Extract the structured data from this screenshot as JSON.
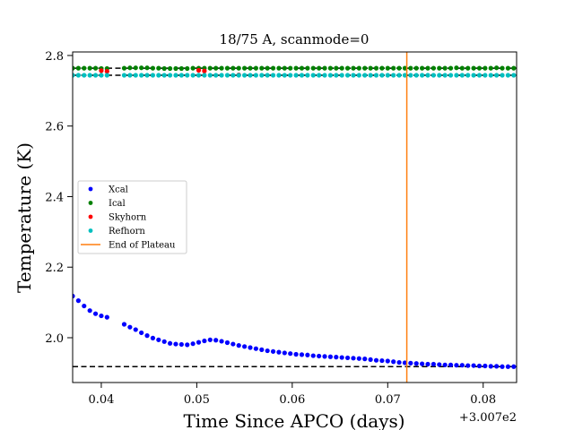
{
  "chart_data": {
    "type": "scatter",
    "title": "18/75 A, scanmode=0",
    "xlabel": "Time Since APCO (days)",
    "ylabel": "Temperature (K)",
    "x_offset_label": "+3.007e2",
    "xlim": [
      300.737,
      300.7835
    ],
    "ylim": [
      1.873,
      2.81
    ],
    "x_ticks": [
      {
        "value": 300.74,
        "label": "0.04"
      },
      {
        "value": 300.75,
        "label": "0.05"
      },
      {
        "value": 300.76,
        "label": "0.06"
      },
      {
        "value": 300.77,
        "label": "0.07"
      },
      {
        "value": 300.78,
        "label": "0.08"
      }
    ],
    "y_ticks": [
      {
        "value": 2.0,
        "label": "2.0"
      },
      {
        "value": 2.2,
        "label": "2.2"
      },
      {
        "value": 2.4,
        "label": "2.4"
      },
      {
        "value": 2.6,
        "label": "2.6"
      },
      {
        "value": 2.8,
        "label": "2.8"
      }
    ],
    "legend_position": "center-left",
    "series": [
      {
        "name": "Xcal",
        "color": "#0000ff",
        "points": [
          [
            300.737,
            2.118
          ],
          [
            300.7376,
            2.105
          ],
          [
            300.7382,
            2.09
          ],
          [
            300.7388,
            2.077
          ],
          [
            300.7394,
            2.068
          ],
          [
            300.74,
            2.062
          ],
          [
            300.7406,
            2.058
          ],
          [
            300.7424,
            2.038
          ],
          [
            300.743,
            2.03
          ],
          [
            300.7436,
            2.023
          ],
          [
            300.7442,
            2.014
          ],
          [
            300.7448,
            2.006
          ],
          [
            300.7454,
            1.999
          ],
          [
            300.746,
            1.994
          ],
          [
            300.7466,
            1.989
          ],
          [
            300.7472,
            1.984
          ],
          [
            300.7478,
            1.982
          ],
          [
            300.7484,
            1.981
          ],
          [
            300.749,
            1.98
          ],
          [
            300.7496,
            1.983
          ],
          [
            300.7502,
            1.987
          ],
          [
            300.7508,
            1.991
          ],
          [
            300.7514,
            1.994
          ],
          [
            300.752,
            1.993
          ],
          [
            300.7526,
            1.99
          ],
          [
            300.7532,
            1.986
          ],
          [
            300.7538,
            1.982
          ],
          [
            300.7544,
            1.978
          ],
          [
            300.755,
            1.975
          ],
          [
            300.7556,
            1.972
          ],
          [
            300.7562,
            1.969
          ],
          [
            300.7568,
            1.966
          ],
          [
            300.7574,
            1.963
          ],
          [
            300.758,
            1.961
          ],
          [
            300.7586,
            1.959
          ],
          [
            300.7592,
            1.957
          ],
          [
            300.7598,
            1.955
          ],
          [
            300.7604,
            1.953
          ],
          [
            300.761,
            1.952
          ],
          [
            300.7616,
            1.951
          ],
          [
            300.7622,
            1.949
          ],
          [
            300.7628,
            1.948
          ],
          [
            300.7634,
            1.947
          ],
          [
            300.764,
            1.946
          ],
          [
            300.7646,
            1.945
          ],
          [
            300.7652,
            1.944
          ],
          [
            300.7658,
            1.943
          ],
          [
            300.7664,
            1.942
          ],
          [
            300.767,
            1.941
          ],
          [
            300.7676,
            1.94
          ],
          [
            300.7682,
            1.938
          ],
          [
            300.7688,
            1.936
          ],
          [
            300.7694,
            1.935
          ],
          [
            300.77,
            1.934
          ],
          [
            300.7706,
            1.932
          ],
          [
            300.7712,
            1.93
          ],
          [
            300.7718,
            1.929
          ],
          [
            300.7724,
            1.928
          ],
          [
            300.773,
            1.927
          ],
          [
            300.7736,
            1.926
          ],
          [
            300.7742,
            1.925
          ],
          [
            300.7748,
            1.925
          ],
          [
            300.7754,
            1.924
          ],
          [
            300.776,
            1.923
          ],
          [
            300.7766,
            1.923
          ],
          [
            300.7772,
            1.922
          ],
          [
            300.7778,
            1.922
          ],
          [
            300.7784,
            1.921
          ],
          [
            300.779,
            1.921
          ],
          [
            300.7796,
            1.92
          ],
          [
            300.7802,
            1.92
          ],
          [
            300.7808,
            1.919
          ],
          [
            300.7814,
            1.919
          ],
          [
            300.782,
            1.918
          ],
          [
            300.7826,
            1.918
          ],
          [
            300.7832,
            1.918
          ]
        ]
      },
      {
        "name": "Ical",
        "color": "#008000",
        "points": [
          [
            300.737,
            2.764
          ],
          [
            300.7376,
            2.764
          ],
          [
            300.7382,
            2.764
          ],
          [
            300.7388,
            2.764
          ],
          [
            300.7394,
            2.764
          ],
          [
            300.74,
            2.763
          ],
          [
            300.7406,
            2.763
          ],
          [
            300.7424,
            2.764
          ],
          [
            300.743,
            2.765
          ],
          [
            300.7436,
            2.765
          ],
          [
            300.7442,
            2.765
          ],
          [
            300.7448,
            2.765
          ],
          [
            300.7454,
            2.764
          ],
          [
            300.746,
            2.764
          ],
          [
            300.7466,
            2.763
          ],
          [
            300.7472,
            2.763
          ],
          [
            300.7478,
            2.763
          ],
          [
            300.7484,
            2.763
          ],
          [
            300.749,
            2.763
          ],
          [
            300.7496,
            2.764
          ],
          [
            300.7502,
            2.764
          ],
          [
            300.7508,
            2.764
          ],
          [
            300.7514,
            2.764
          ],
          [
            300.752,
            2.764
          ],
          [
            300.7526,
            2.764
          ],
          [
            300.7532,
            2.764
          ],
          [
            300.7538,
            2.764
          ],
          [
            300.7544,
            2.764
          ],
          [
            300.755,
            2.764
          ],
          [
            300.7556,
            2.764
          ],
          [
            300.7562,
            2.764
          ],
          [
            300.7568,
            2.764
          ],
          [
            300.7574,
            2.764
          ],
          [
            300.758,
            2.764
          ],
          [
            300.7586,
            2.764
          ],
          [
            300.7592,
            2.764
          ],
          [
            300.7598,
            2.764
          ],
          [
            300.7604,
            2.764
          ],
          [
            300.761,
            2.764
          ],
          [
            300.7616,
            2.764
          ],
          [
            300.7622,
            2.764
          ],
          [
            300.7628,
            2.764
          ],
          [
            300.7634,
            2.764
          ],
          [
            300.764,
            2.764
          ],
          [
            300.7646,
            2.764
          ],
          [
            300.7652,
            2.764
          ],
          [
            300.7658,
            2.764
          ],
          [
            300.7664,
            2.764
          ],
          [
            300.767,
            2.764
          ],
          [
            300.7676,
            2.764
          ],
          [
            300.7682,
            2.764
          ],
          [
            300.7688,
            2.764
          ],
          [
            300.7694,
            2.764
          ],
          [
            300.77,
            2.764
          ],
          [
            300.7706,
            2.764
          ],
          [
            300.7712,
            2.764
          ],
          [
            300.7718,
            2.764
          ],
          [
            300.7724,
            2.764
          ],
          [
            300.773,
            2.764
          ],
          [
            300.7736,
            2.764
          ],
          [
            300.7742,
            2.764
          ],
          [
            300.7748,
            2.764
          ],
          [
            300.7754,
            2.764
          ],
          [
            300.776,
            2.764
          ],
          [
            300.7766,
            2.764
          ],
          [
            300.7772,
            2.765
          ],
          [
            300.7778,
            2.764
          ],
          [
            300.7784,
            2.764
          ],
          [
            300.779,
            2.764
          ],
          [
            300.7796,
            2.764
          ],
          [
            300.7802,
            2.764
          ],
          [
            300.7808,
            2.764
          ],
          [
            300.7814,
            2.765
          ],
          [
            300.782,
            2.764
          ],
          [
            300.7826,
            2.764
          ],
          [
            300.7832,
            2.764
          ]
        ]
      },
      {
        "name": "Skyhorn",
        "color": "#ff0000",
        "points": [
          [
            300.74,
            2.757
          ],
          [
            300.7406,
            2.755
          ],
          [
            300.7502,
            2.758
          ],
          [
            300.7508,
            2.756
          ],
          [
            300.7544,
            2.745
          ]
        ]
      },
      {
        "name": "Refhorn",
        "color": "#00bfbf",
        "points": [
          [
            300.737,
            2.744
          ],
          [
            300.7376,
            2.744
          ],
          [
            300.7382,
            2.744
          ],
          [
            300.7388,
            2.744
          ],
          [
            300.7394,
            2.744
          ],
          [
            300.74,
            2.744
          ],
          [
            300.7406,
            2.744
          ],
          [
            300.7424,
            2.744
          ],
          [
            300.743,
            2.744
          ],
          [
            300.7436,
            2.744
          ],
          [
            300.7442,
            2.744
          ],
          [
            300.7448,
            2.744
          ],
          [
            300.7454,
            2.744
          ],
          [
            300.746,
            2.744
          ],
          [
            300.7466,
            2.744
          ],
          [
            300.7472,
            2.744
          ],
          [
            300.7478,
            2.744
          ],
          [
            300.7484,
            2.744
          ],
          [
            300.749,
            2.744
          ],
          [
            300.7496,
            2.744
          ],
          [
            300.7502,
            2.744
          ],
          [
            300.7508,
            2.744
          ],
          [
            300.7514,
            2.744
          ],
          [
            300.752,
            2.744
          ],
          [
            300.7526,
            2.744
          ],
          [
            300.7532,
            2.744
          ],
          [
            300.7538,
            2.744
          ],
          [
            300.7544,
            2.744
          ],
          [
            300.755,
            2.744
          ],
          [
            300.7556,
            2.744
          ],
          [
            300.7562,
            2.744
          ],
          [
            300.7568,
            2.744
          ],
          [
            300.7574,
            2.744
          ],
          [
            300.758,
            2.744
          ],
          [
            300.7586,
            2.744
          ],
          [
            300.7592,
            2.744
          ],
          [
            300.7598,
            2.744
          ],
          [
            300.7604,
            2.744
          ],
          [
            300.761,
            2.744
          ],
          [
            300.7616,
            2.744
          ],
          [
            300.7622,
            2.744
          ],
          [
            300.7628,
            2.744
          ],
          [
            300.7634,
            2.744
          ],
          [
            300.764,
            2.744
          ],
          [
            300.7646,
            2.744
          ],
          [
            300.7652,
            2.744
          ],
          [
            300.7658,
            2.744
          ],
          [
            300.7664,
            2.744
          ],
          [
            300.767,
            2.744
          ],
          [
            300.7676,
            2.744
          ],
          [
            300.7682,
            2.744
          ],
          [
            300.7688,
            2.744
          ],
          [
            300.7694,
            2.744
          ],
          [
            300.77,
            2.744
          ],
          [
            300.7706,
            2.744
          ],
          [
            300.7712,
            2.744
          ],
          [
            300.7718,
            2.744
          ],
          [
            300.7724,
            2.744
          ],
          [
            300.773,
            2.744
          ],
          [
            300.7736,
            2.744
          ],
          [
            300.7742,
            2.744
          ],
          [
            300.7748,
            2.744
          ],
          [
            300.7754,
            2.744
          ],
          [
            300.776,
            2.744
          ],
          [
            300.7766,
            2.744
          ],
          [
            300.7772,
            2.744
          ],
          [
            300.7778,
            2.744
          ],
          [
            300.7784,
            2.744
          ],
          [
            300.779,
            2.744
          ],
          [
            300.7796,
            2.744
          ],
          [
            300.7802,
            2.744
          ],
          [
            300.7808,
            2.744
          ],
          [
            300.7814,
            2.744
          ],
          [
            300.782,
            2.744
          ],
          [
            300.7826,
            2.744
          ],
          [
            300.7832,
            2.744
          ]
        ]
      }
    ],
    "hlines": [
      {
        "y": 1.918,
        "color": "#000000",
        "style": "dashed"
      },
      {
        "y": 2.764,
        "color": "#000000",
        "style": "dashed"
      },
      {
        "y": 2.744,
        "color": "#000000",
        "style": "dashed"
      }
    ],
    "vline": {
      "name": "End of Plateau",
      "x": 300.772,
      "color": "#ff7f0e"
    },
    "grid": false
  }
}
